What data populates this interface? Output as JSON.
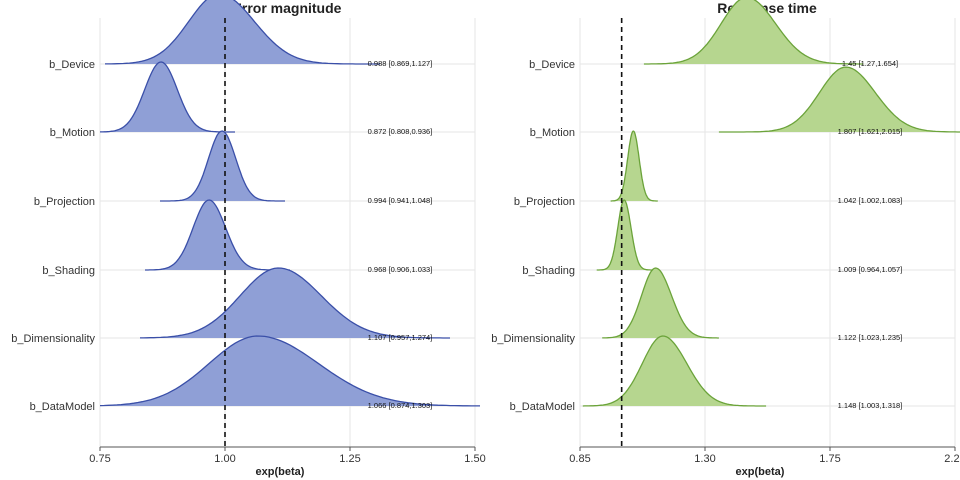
{
  "chart_data": [
    {
      "type": "ridgeline",
      "title": "Error magnitude",
      "xlabel": "exp(beta)",
      "ylabel": "",
      "xlim": [
        0.75,
        1.5
      ],
      "xticks": [
        "0.75",
        "1.00",
        "1.25",
        "1.50"
      ],
      "reference_line": 1.0,
      "color": "#8f9fd6",
      "line_color": "#3a4fa8",
      "grid": true,
      "series": [
        {
          "name": "b_Device",
          "mean": 0.988,
          "lower": 0.869,
          "upper": 1.127,
          "range": [
            0.76,
            1.31
          ],
          "label": "0.988 [0.869,1.127]"
        },
        {
          "name": "b_Motion",
          "mean": 0.872,
          "lower": 0.808,
          "upper": 0.936,
          "range": [
            0.75,
            1.02
          ],
          "label": "0.872 [0.808,0.936]"
        },
        {
          "name": "b_Projection",
          "mean": 0.994,
          "lower": 0.941,
          "upper": 1.048,
          "range": [
            0.87,
            1.12
          ],
          "label": "0.994 [0.941,1.048]"
        },
        {
          "name": "b_Shading",
          "mean": 0.968,
          "lower": 0.906,
          "upper": 1.033,
          "range": [
            0.84,
            1.13
          ],
          "label": "0.968 [0.906,1.033]"
        },
        {
          "name": "b_Dimensionality",
          "mean": 1.107,
          "lower": 0.957,
          "upper": 1.274,
          "range": [
            0.83,
            1.45
          ],
          "label": "1.107 [0.957,1.274]"
        },
        {
          "name": "b_DataModel",
          "mean": 1.066,
          "lower": 0.874,
          "upper": 1.303,
          "range": [
            0.75,
            1.51
          ],
          "label": "1.066 [0.874,1.303]"
        }
      ]
    },
    {
      "type": "ridgeline",
      "title": "Response time",
      "xlabel": "exp(beta)",
      "ylabel": "",
      "xlim": [
        0.85,
        2.2
      ],
      "xticks": [
        "0.85",
        "1.30",
        "1.75",
        "2.20"
      ],
      "reference_line": 1.0,
      "color": "#b6d68f",
      "line_color": "#6ba33a",
      "grid": true,
      "series": [
        {
          "name": "b_Device",
          "mean": 1.45,
          "lower": 1.27,
          "upper": 1.654,
          "range": [
            1.08,
            1.87
          ],
          "label": "1.45 [1.27,1.654]"
        },
        {
          "name": "b_Motion",
          "mean": 1.807,
          "lower": 1.621,
          "upper": 2.015,
          "range": [
            1.35,
            2.25
          ],
          "label": "1.807 [1.621,2.015]"
        },
        {
          "name": "b_Projection",
          "mean": 1.042,
          "lower": 1.002,
          "upper": 1.083,
          "range": [
            0.96,
            1.13
          ],
          "label": "1.042 [1.002,1.083]"
        },
        {
          "name": "b_Shading",
          "mean": 1.009,
          "lower": 0.964,
          "upper": 1.057,
          "range": [
            0.91,
            1.12
          ],
          "label": "1.009 [0.964,1.057]"
        },
        {
          "name": "b_Dimensionality",
          "mean": 1.122,
          "lower": 1.023,
          "upper": 1.235,
          "range": [
            0.93,
            1.35
          ],
          "label": "1.122 [1.023,1.235]"
        },
        {
          "name": "b_DataModel",
          "mean": 1.148,
          "lower": 1.003,
          "upper": 1.318,
          "range": [
            0.86,
            1.52
          ],
          "label": "1.148 [1.003,1.318]"
        }
      ]
    }
  ]
}
